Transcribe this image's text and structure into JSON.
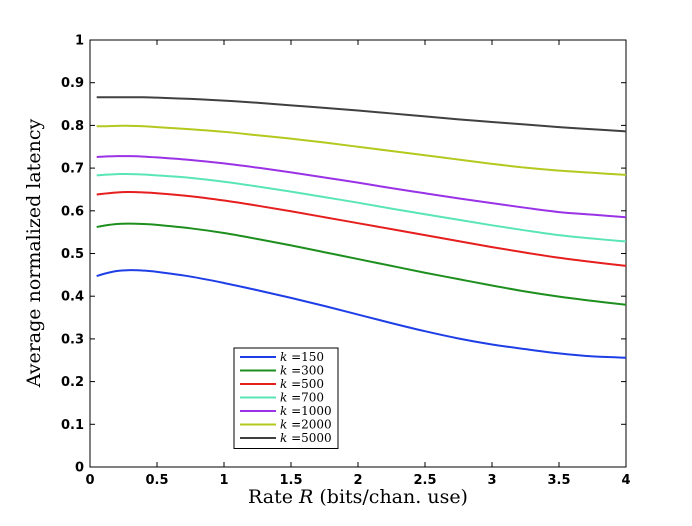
{
  "chart_data": {
    "type": "line",
    "title": "",
    "xlabel_prefix": "Rate ",
    "xlabel_var": "R",
    "xlabel_suffix": " (bits/chan. use)",
    "ylabel": "Average normalized latency",
    "xlim": [
      0,
      4
    ],
    "ylim": [
      0,
      1
    ],
    "xticks": [
      0,
      0.5,
      1,
      1.5,
      2,
      2.5,
      3,
      3.5,
      4
    ],
    "xtick_labels": [
      "0",
      "0.5",
      "1",
      "1.5",
      "2",
      "2.5",
      "3",
      "3.5",
      "4"
    ],
    "yticks": [
      0,
      0.1,
      0.2,
      0.3,
      0.4,
      0.5,
      0.6,
      0.7,
      0.8,
      0.9,
      1
    ],
    "ytick_labels": [
      "0",
      "0.1",
      "0.2",
      "0.3",
      "0.4",
      "0.5",
      "0.6",
      "0.7",
      "0.8",
      "0.9",
      "1"
    ],
    "grid": false,
    "legend_position": "bottom-center",
    "x": [
      0.05,
      0.1,
      0.2,
      0.3,
      0.4,
      0.5,
      0.75,
      1,
      1.25,
      1.5,
      1.75,
      2,
      2.25,
      2.5,
      2.75,
      3,
      3.25,
      3.5,
      3.75,
      4
    ],
    "series": [
      {
        "name": "150",
        "color": "#1f3fe6",
        "values": [
          0.447,
          0.452,
          0.459,
          0.461,
          0.46,
          0.457,
          0.446,
          0.431,
          0.414,
          0.396,
          0.377,
          0.357,
          0.337,
          0.318,
          0.301,
          0.287,
          0.276,
          0.266,
          0.259,
          0.256
        ]
      },
      {
        "name": "300",
        "color": "#1e8f1e",
        "values": [
          0.562,
          0.565,
          0.569,
          0.57,
          0.569,
          0.567,
          0.559,
          0.548,
          0.534,
          0.519,
          0.503,
          0.487,
          0.471,
          0.455,
          0.44,
          0.425,
          0.411,
          0.399,
          0.389,
          0.38
        ]
      },
      {
        "name": "500",
        "color": "#e61e1e",
        "values": [
          0.638,
          0.64,
          0.643,
          0.644,
          0.643,
          0.641,
          0.634,
          0.624,
          0.612,
          0.599,
          0.585,
          0.571,
          0.557,
          0.543,
          0.529,
          0.515,
          0.502,
          0.49,
          0.48,
          0.471
        ]
      },
      {
        "name": "700",
        "color": "#5ae6b4",
        "values": [
          0.683,
          0.684,
          0.686,
          0.686,
          0.685,
          0.683,
          0.677,
          0.668,
          0.657,
          0.645,
          0.632,
          0.619,
          0.605,
          0.592,
          0.579,
          0.566,
          0.554,
          0.543,
          0.535,
          0.528
        ]
      },
      {
        "name": "1000",
        "color": "#9a32e6",
        "values": [
          0.726,
          0.727,
          0.728,
          0.728,
          0.727,
          0.725,
          0.719,
          0.711,
          0.701,
          0.69,
          0.678,
          0.666,
          0.653,
          0.641,
          0.629,
          0.618,
          0.607,
          0.597,
          0.591,
          0.585
        ]
      },
      {
        "name": "2000",
        "color": "#b4c81e",
        "values": [
          0.798,
          0.798,
          0.799,
          0.799,
          0.798,
          0.796,
          0.791,
          0.785,
          0.777,
          0.769,
          0.76,
          0.75,
          0.74,
          0.73,
          0.72,
          0.71,
          0.701,
          0.694,
          0.689,
          0.684
        ]
      },
      {
        "name": "5000",
        "color": "#404040",
        "values": [
          0.866,
          0.866,
          0.866,
          0.866,
          0.866,
          0.865,
          0.862,
          0.858,
          0.853,
          0.847,
          0.841,
          0.835,
          0.828,
          0.821,
          0.814,
          0.808,
          0.802,
          0.796,
          0.791,
          0.786
        ]
      }
    ],
    "legend_prefix": "k",
    "legend_eq": " =",
    "legend": [
      {
        "label": "150",
        "color": "#1f3fe6"
      },
      {
        "label": "300",
        "color": "#1e8f1e"
      },
      {
        "label": "500",
        "color": "#e61e1e"
      },
      {
        "label": "700",
        "color": "#5ae6b4"
      },
      {
        "label": "1000",
        "color": "#9a32e6"
      },
      {
        "label": "2000",
        "color": "#b4c81e"
      },
      {
        "label": "5000",
        "color": "#404040"
      }
    ]
  }
}
